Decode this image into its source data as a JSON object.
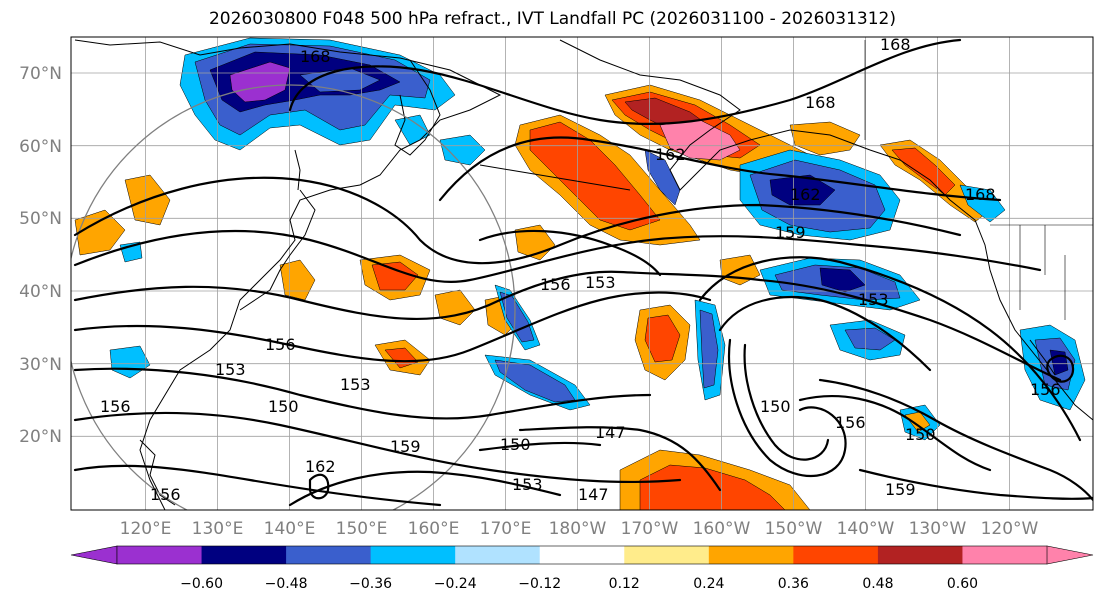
{
  "title": "2026030800 F048 500 hPa refract., IVT Landfall PC (2026031100 - 2026031312)",
  "latitude_labels": [
    "70°N",
    "60°N",
    "50°N",
    "40°N",
    "30°N",
    "20°N"
  ],
  "longitude_labels": [
    "120°E",
    "130°E",
    "140°E",
    "150°E",
    "160°E",
    "170°E",
    "180°W",
    "170°W",
    "160°W",
    "150°W",
    "140°W",
    "130°W",
    "120°W"
  ],
  "contour_labels": [
    "168",
    "168",
    "168",
    "168",
    "162",
    "162",
    "162",
    "159",
    "159",
    "159",
    "156",
    "156",
    "156",
    "156",
    "156",
    "156",
    "153",
    "153",
    "153",
    "153",
    "153",
    "150",
    "150",
    "150",
    "150",
    "147",
    "147"
  ],
  "colorbar": {
    "colors": [
      "#9b30d0",
      "#000080",
      "#3a5fcd",
      "#00bfff",
      "#b0e2ff",
      "#ffffff",
      "#ffec8b",
      "#ffa500",
      "#ff4500",
      "#b22222",
      "#ff82ab"
    ],
    "extend_low_color": "#9b30d0",
    "extend_high_color": "#ff82ab",
    "tick_labels": [
      "−0.60",
      "−0.48",
      "−0.36",
      "−0.24",
      "−0.12",
      "0.12",
      "0.24",
      "0.36",
      "0.48",
      "0.60"
    ]
  },
  "colors": {
    "purple": "#9b30d0",
    "navy": "#000080",
    "royal_blue": "#3a5fcd",
    "deep_sky_blue": "#00bfff",
    "light_blue": "#b0e2ff",
    "light_yellow": "#ffec8b",
    "orange": "#ffa500",
    "orange_red": "#ff4500",
    "firebrick": "#b22222",
    "pink": "#ff82ab",
    "grid": "#a0a0a0",
    "axis_label": "#808080"
  }
}
